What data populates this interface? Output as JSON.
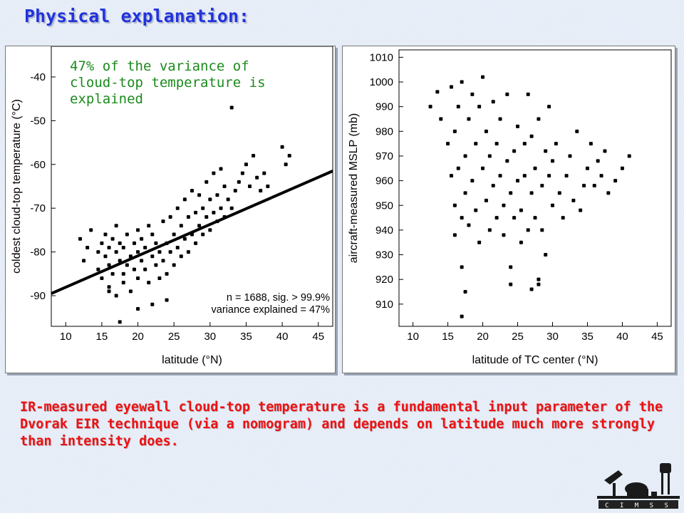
{
  "title": "Physical explanation:",
  "annotation_text": "47% of the variance of cloud-top temperature is explained",
  "bottom_text": "IR-measured eyewall cloud-top temperature is a fundamental input parameter of the Dvorak EIR technique (via a nomogram) and depends on latitude much more strongly than intensity does.",
  "logo_text": "CIMSS",
  "colors": {
    "title": "#2233dd",
    "annotation": "#1c8a1c",
    "bottom_text": "#ee1111",
    "points": "#000000"
  },
  "chart_data": [
    {
      "type": "scatter",
      "xlabel": "latitude (°N)",
      "ylabel": "coldest cloud-top temperature (°C)",
      "xlim": [
        8,
        47
      ],
      "ylim": [
        -97,
        -33
      ],
      "xticks": [
        10,
        15,
        20,
        25,
        30,
        35,
        40,
        45
      ],
      "yticks": [
        -90,
        -80,
        -70,
        -60,
        -50,
        -40
      ],
      "stats": [
        "n = 1688, sig. > 99.9%",
        "variance explained = 47%"
      ],
      "regression_line": {
        "x": [
          8,
          47
        ],
        "y": [
          -89.5,
          -61.5
        ]
      },
      "series": [
        {
          "x": [
            12.0,
            12.5,
            13.0,
            13.5,
            14.5,
            14.5,
            15.0,
            15.0,
            15.5,
            15.5,
            16.0,
            16.0,
            16.0,
            16.5,
            16.5,
            17.0,
            17.0,
            17.0,
            17.5,
            17.5,
            18.0,
            18.0,
            18.0,
            18.5,
            18.5,
            19.0,
            19.0,
            19.5,
            19.5,
            20.0,
            20.0,
            20.0,
            20.5,
            20.5,
            21.0,
            21.0,
            21.5,
            21.5,
            22.0,
            22.0,
            22.5,
            22.5,
            23.0,
            23.0,
            23.5,
            23.5,
            24.0,
            24.0,
            24.5,
            24.5,
            25.0,
            25.0,
            25.5,
            25.5,
            26.0,
            26.0,
            26.5,
            26.5,
            27.0,
            27.0,
            27.5,
            27.5,
            28.0,
            28.0,
            28.5,
            28.5,
            29.0,
            29.0,
            29.5,
            29.5,
            30.0,
            30.0,
            30.5,
            30.5,
            31.0,
            31.0,
            31.5,
            31.5,
            32.0,
            32.0,
            32.5,
            33.0,
            33.5,
            34.0,
            34.5,
            35.0,
            35.5,
            36.0,
            36.5,
            37.0,
            37.5,
            38.0,
            40.0,
            40.5,
            41.0,
            17.5,
            20.0,
            22.0,
            24.0,
            16.0,
            33.0
          ],
          "y": [
            -77,
            -82,
            -79,
            -75,
            -80,
            -84,
            -78,
            -86,
            -81,
            -76,
            -83,
            -79,
            -88,
            -77,
            -85,
            -80,
            -74,
            -90,
            -82,
            -78,
            -85,
            -79,
            -87,
            -76,
            -83,
            -81,
            -89,
            -78,
            -84,
            -80,
            -75,
            -86,
            -82,
            -77,
            -84,
            -79,
            -87,
            -74,
            -81,
            -76,
            -83,
            -78,
            -86,
            -80,
            -82,
            -73,
            -85,
            -78,
            -80,
            -72,
            -83,
            -76,
            -79,
            -70,
            -81,
            -74,
            -77,
            -68,
            -80,
            -72,
            -76,
            -66,
            -78,
            -71,
            -74,
            -67,
            -76,
            -70,
            -72,
            -64,
            -75,
            -68,
            -71,
            -62,
            -73,
            -67,
            -70,
            -61,
            -72,
            -65,
            -68,
            -70,
            -66,
            -64,
            -62,
            -60,
            -65,
            -58,
            -63,
            -66,
            -62,
            -65,
            -56,
            -60,
            -58,
            -96,
            -93,
            -92,
            -91,
            -89,
            -47
          ]
        }
      ]
    },
    {
      "type": "scatter",
      "xlabel": "latitude of TC center (°N)",
      "ylabel": "aircraft-measured MSLP (mb)",
      "xlim": [
        8,
        47
      ],
      "ylim": [
        901,
        1013
      ],
      "xticks": [
        10,
        15,
        20,
        25,
        30,
        35,
        40,
        45
      ],
      "yticks": [
        910,
        920,
        930,
        940,
        950,
        960,
        970,
        980,
        990,
        1000,
        1010
      ],
      "series": [
        {
          "x": [
            12.5,
            13.5,
            14.0,
            15.0,
            15.5,
            15.5,
            16.0,
            16.0,
            16.0,
            16.5,
            16.5,
            17.0,
            17.0,
            17.0,
            17.5,
            17.5,
            18.0,
            18.0,
            18.5,
            18.5,
            19.0,
            19.0,
            19.5,
            19.5,
            20.0,
            20.0,
            20.5,
            20.5,
            21.0,
            21.0,
            21.5,
            21.5,
            22.0,
            22.0,
            22.5,
            22.5,
            23.0,
            23.0,
            23.5,
            23.5,
            24.0,
            24.0,
            24.5,
            24.5,
            25.0,
            25.0,
            25.5,
            25.5,
            26.0,
            26.0,
            26.5,
            26.5,
            27.0,
            27.0,
            27.5,
            27.5,
            28.0,
            28.0,
            28.5,
            28.5,
            29.0,
            29.0,
            29.5,
            29.5,
            30.0,
            30.0,
            30.5,
            31.0,
            31.5,
            32.0,
            32.5,
            33.0,
            33.5,
            34.0,
            34.5,
            35.0,
            35.5,
            36.0,
            36.5,
            37.0,
            37.5,
            38.0,
            39.0,
            40.0,
            41.0,
            17.0,
            17.5,
            24.0,
            27.0,
            28.0
          ],
          "y": [
            990,
            996,
            985,
            975,
            998,
            962,
            950,
            980,
            938,
            990,
            965,
            945,
            1000,
            925,
            970,
            955,
            985,
            942,
            960,
            995,
            948,
            975,
            935,
            990,
            965,
            1002,
            952,
            980,
            940,
            970,
            958,
            992,
            945,
            975,
            962,
            985,
            950,
            938,
            968,
            995,
            955,
            925,
            972,
            945,
            982,
            960,
            948,
            935,
            975,
            962,
            995,
            940,
            955,
            978,
            965,
            945,
            920,
            985,
            958,
            940,
            972,
            930,
            962,
            990,
            950,
            968,
            975,
            955,
            945,
            962,
            970,
            952,
            980,
            948,
            958,
            965,
            975,
            958,
            968,
            962,
            972,
            955,
            960,
            965,
            970,
            905,
            915,
            918,
            916,
            918
          ]
        }
      ]
    }
  ]
}
